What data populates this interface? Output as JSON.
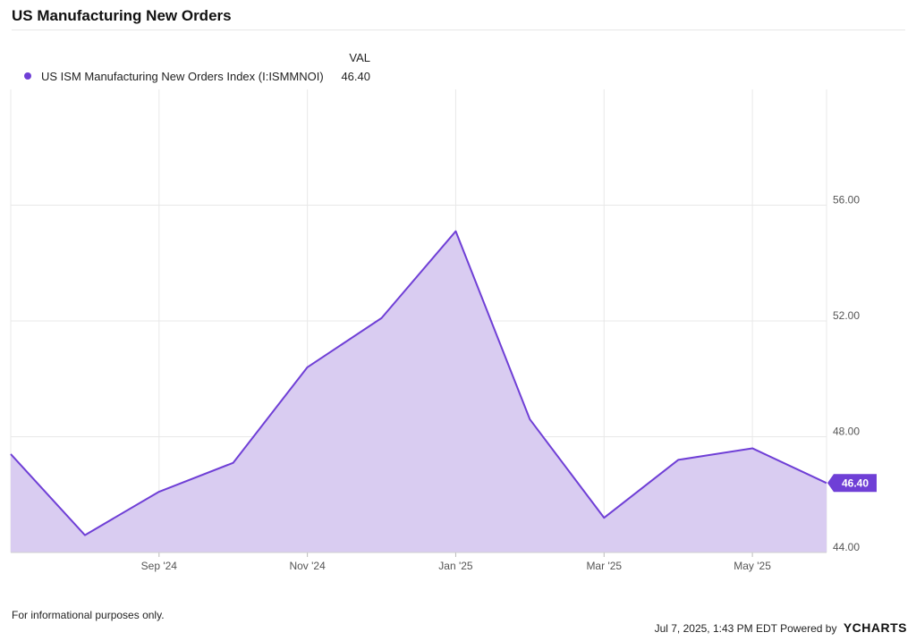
{
  "title": "US Manufacturing New Orders",
  "legend": {
    "column_header": "VAL",
    "series_name": "US ISM Manufacturing New Orders Index (I:ISMMNOI)",
    "series_value": "46.40"
  },
  "colors": {
    "line": "#6f3fd6",
    "fill": "#d9ccf1",
    "grid": "#e8e8e8",
    "badge": "#6f3fd6"
  },
  "chart_data": {
    "type": "area",
    "x": [
      "2024-07",
      "2024-08",
      "2024-09",
      "2024-10",
      "2024-11",
      "2024-12",
      "2025-01",
      "2025-02",
      "2025-03",
      "2025-04",
      "2025-05",
      "2025-06"
    ],
    "series": [
      {
        "name": "US ISM Manufacturing New Orders Index (I:ISMMNOI)",
        "values": [
          47.4,
          44.6,
          46.1,
          47.1,
          50.4,
          52.1,
          55.1,
          48.6,
          45.2,
          47.2,
          47.6,
          46.4
        ]
      }
    ],
    "x_tick_labels": [
      "Sep '24",
      "Nov '24",
      "Jan '25",
      "Mar '25",
      "May '25"
    ],
    "y_ticks": [
      "44.00",
      "48.00",
      "52.00",
      "56.00"
    ],
    "ylim": [
      44,
      60
    ],
    "last_value_label": "46.40",
    "grid": true,
    "legend_position": "top-left"
  },
  "footer": {
    "note": "For informational purposes only.",
    "timestamp": "Jul 7, 2025, 1:43 PM EDT",
    "powered_by": "Powered by",
    "brand": "YCHARTS"
  }
}
